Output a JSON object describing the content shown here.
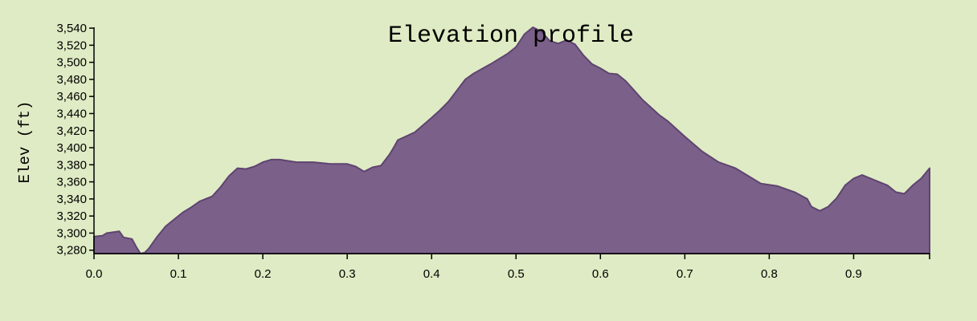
{
  "colors": {
    "background": "#dfebc4",
    "area_fill": "#7b6189",
    "area_stroke": "#5e4470",
    "axis": "#000000"
  },
  "chart_data": {
    "type": "area",
    "title": "Elevation profile",
    "xlabel": "",
    "ylabel": "Elev (ft)",
    "xlim": [
      0,
      0.99
    ],
    "ylim": [
      3276,
      3541
    ],
    "x_ticks": [
      0.0,
      0.1,
      0.2,
      0.3,
      0.4,
      0.5,
      0.6,
      0.7,
      0.8,
      0.9
    ],
    "x_tick_labels": [
      "0.0",
      "0.1",
      "0.2",
      "0.3",
      "0.4",
      "0.5",
      "0.6",
      "0.7",
      "0.8",
      "0.9"
    ],
    "y_ticks": [
      3280,
      3300,
      3320,
      3340,
      3360,
      3380,
      3400,
      3420,
      3440,
      3460,
      3480,
      3500,
      3520,
      3540
    ],
    "y_tick_labels": [
      "3,280",
      "3,300",
      "3,320",
      "3,340",
      "3,360",
      "3,380",
      "3,400",
      "3,420",
      "3,440",
      "3,460",
      "3,480",
      "3,500",
      "3,520",
      "3,540"
    ],
    "grid": false,
    "legend": "none",
    "x": [
      0,
      0.01,
      0.015,
      0.03,
      0.035,
      0.045,
      0.05,
      0.055,
      0.06,
      0.065,
      0.075,
      0.085,
      0.095,
      0.105,
      0.115,
      0.125,
      0.135,
      0.14,
      0.15,
      0.16,
      0.17,
      0.18,
      0.19,
      0.2,
      0.21,
      0.22,
      0.24,
      0.26,
      0.28,
      0.3,
      0.31,
      0.32,
      0.33,
      0.34,
      0.35,
      0.355,
      0.36,
      0.38,
      0.4,
      0.41,
      0.42,
      0.43,
      0.44,
      0.45,
      0.47,
      0.49,
      0.5,
      0.51,
      0.52,
      0.53,
      0.54,
      0.55,
      0.56,
      0.57,
      0.58,
      0.59,
      0.6,
      0.61,
      0.62,
      0.63,
      0.64,
      0.65,
      0.66,
      0.67,
      0.68,
      0.7,
      0.72,
      0.74,
      0.76,
      0.78,
      0.79,
      0.81,
      0.83,
      0.845,
      0.85,
      0.86,
      0.87,
      0.88,
      0.89,
      0.9,
      0.91,
      0.925,
      0.94,
      0.95,
      0.96,
      0.97,
      0.98,
      0.99
    ],
    "y": [
      3296,
      3297,
      3300,
      3302,
      3295,
      3293,
      3284,
      3276,
      3277,
      3282,
      3296,
      3308,
      3316,
      3324,
      3330,
      3337,
      3341,
      3343,
      3354,
      3367,
      3376,
      3375,
      3378,
      3383,
      3386,
      3386,
      3383,
      3383,
      3381,
      3381,
      3378,
      3372,
      3377,
      3379,
      3392,
      3400,
      3409,
      3418,
      3435,
      3444,
      3454,
      3467,
      3480,
      3487,
      3498,
      3510,
      3518,
      3533,
      3541,
      3536,
      3525,
      3522,
      3526,
      3521,
      3508,
      3498,
      3493,
      3487,
      3486,
      3478,
      3467,
      3456,
      3447,
      3438,
      3431,
      3413,
      3396,
      3383,
      3376,
      3364,
      3358,
      3355,
      3348,
      3340,
      3331,
      3326,
      3331,
      3341,
      3356,
      3364,
      3368,
      3362,
      3356,
      3348,
      3346,
      3356,
      3364,
      3376
    ]
  }
}
